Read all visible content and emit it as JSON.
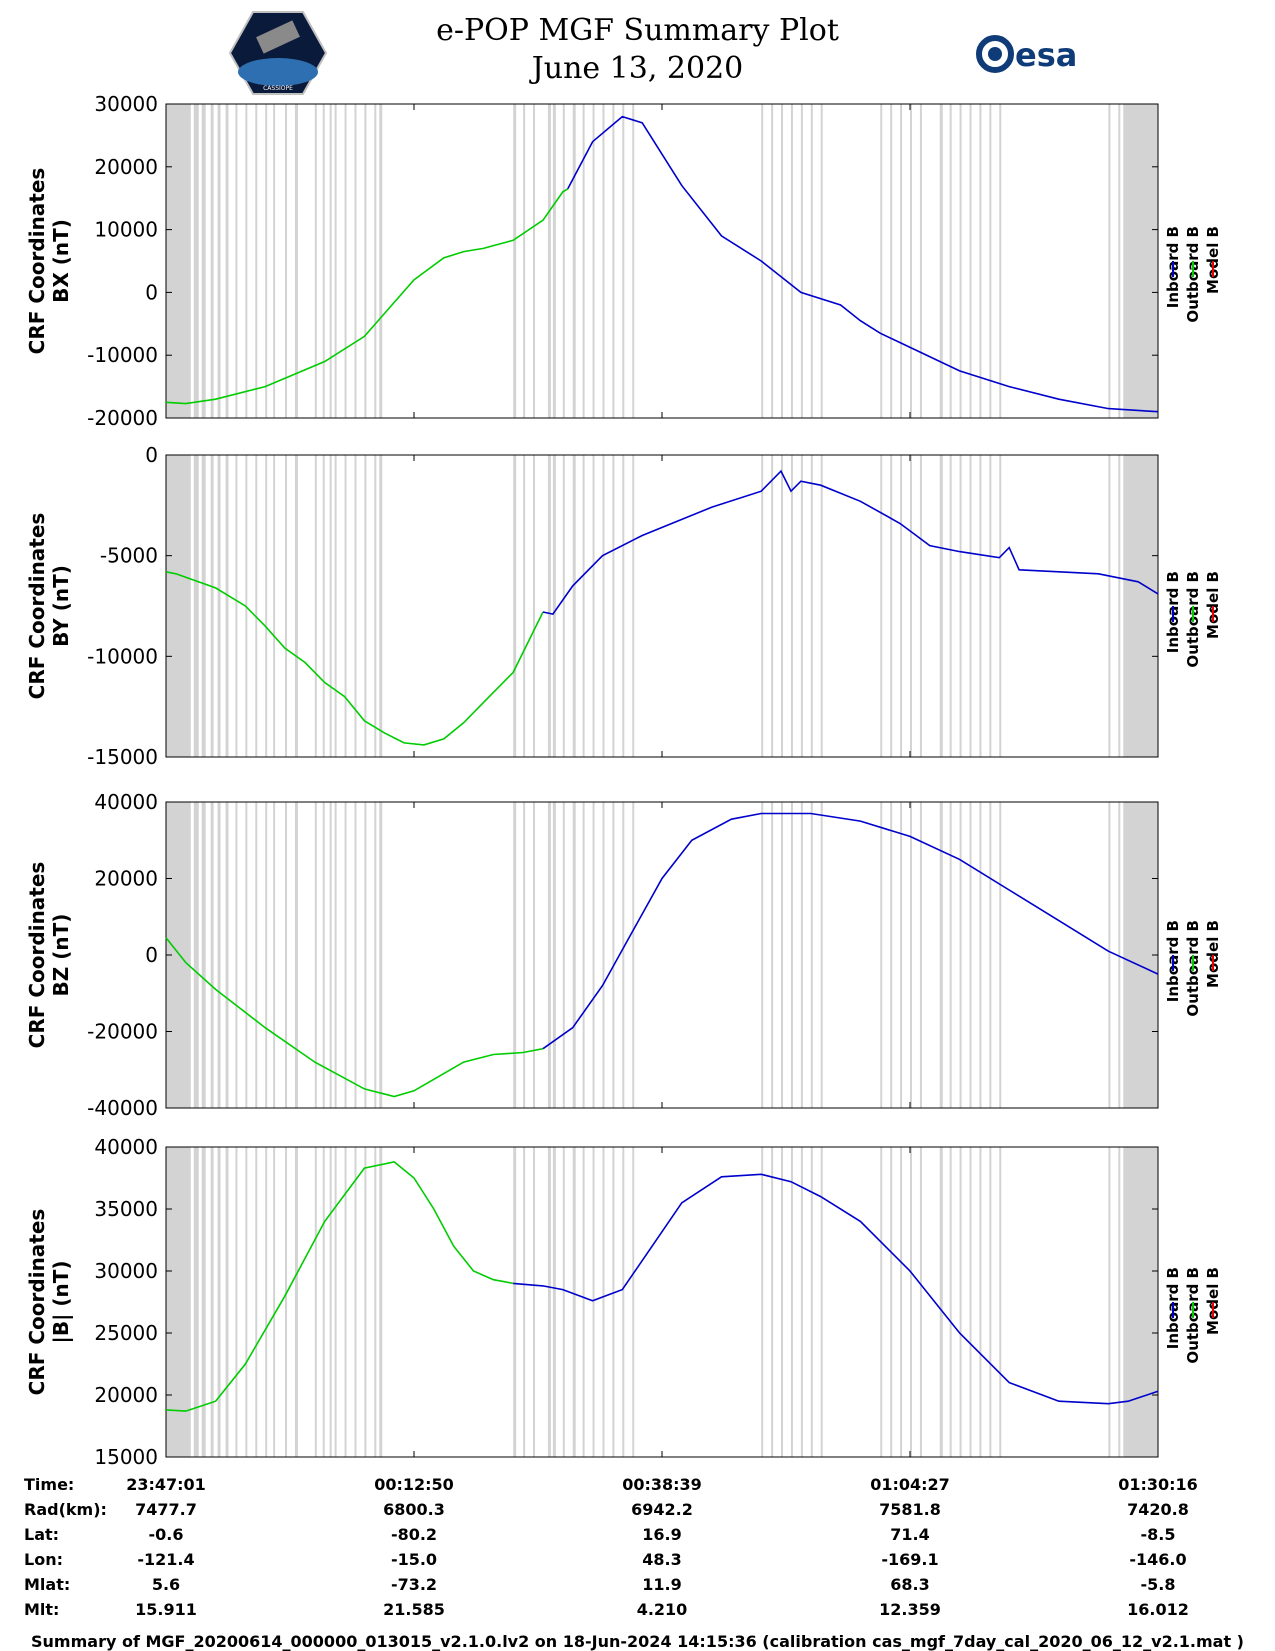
{
  "header": {
    "title_line1": "e-POP MGF Summary Plot",
    "title_line2": "June 13, 2020",
    "logo_left_text": "CASSIOPE",
    "logo_right_text": "esa"
  },
  "colors": {
    "inboard": "#0000cc",
    "outboard": "#00cc00",
    "model": "#ee0000",
    "gap": "#d3d3d3"
  },
  "footer": "Summary of MGF_20200614_000000_013015_v2.1.0.lv2 on 18-Jun-2024 14:15:36 (calibration cas_mgf_7day_cal_2020_06_12_v2.1.mat )",
  "chart_data": [
    {
      "type": "line",
      "id": "bx",
      "ylabel": [
        "CRF Coordinates",
        "BX (nT)"
      ],
      "ylim": [
        -20000,
        30000
      ],
      "yticks": [
        "30000",
        "20000",
        "10000",
        "0",
        "-10000",
        "-20000"
      ],
      "yticks_values": [
        30000,
        20000,
        10000,
        0,
        -10000,
        -20000
      ],
      "legend": [
        "Inboard B",
        "Outboard B",
        "Model B"
      ],
      "x": [
        0,
        0.01,
        0.05,
        0.1,
        0.16,
        0.2,
        0.25,
        0.29,
        0.33,
        0.36,
        0.38,
        0.4,
        0.41
      ],
      "series": [
        {
          "name": "Outboard B",
          "x": [
            0,
            0.02,
            0.05,
            0.1,
            0.16,
            0.2,
            0.25,
            0.28,
            0.3,
            0.32,
            0.35,
            0.38,
            0.4,
            0.405
          ],
          "values": [
            -17500,
            -17700,
            -17000,
            -15000,
            -11000,
            -7000,
            2000,
            5500,
            6500,
            7000,
            8300,
            11500,
            16000,
            16500
          ]
        },
        {
          "name": "Inboard B",
          "x": [
            0.405,
            0.43,
            0.46,
            0.48,
            0.5,
            0.52,
            0.56,
            0.6,
            0.64,
            0.68,
            0.7,
            0.72,
            0.74,
            0.8,
            0.85,
            0.9,
            0.95,
            1.0
          ],
          "values": [
            16500,
            24000,
            28000,
            27000,
            22000,
            17000,
            9000,
            5000,
            0,
            -2000,
            -4500,
            -6500,
            -8000,
            -12500,
            -15000,
            -17000,
            -18500,
            -19000
          ]
        }
      ]
    },
    {
      "type": "line",
      "id": "by",
      "ylabel": [
        "CRF Coordinates",
        "BY (nT)"
      ],
      "ylim": [
        -15000,
        0
      ],
      "yticks": [
        "0",
        "-5000",
        "-10000",
        "-15000"
      ],
      "yticks_values": [
        0,
        -5000,
        -10000,
        -15000
      ],
      "legend": [
        "Inboard B",
        "Outboard B",
        "Model B"
      ],
      "series": [
        {
          "name": "Outboard B",
          "x": [
            0,
            0.01,
            0.05,
            0.08,
            0.1,
            0.12,
            0.14,
            0.16,
            0.18,
            0.2,
            0.22,
            0.24,
            0.26,
            0.28,
            0.3,
            0.32,
            0.35,
            0.37,
            0.38
          ],
          "values": [
            -5800,
            -5900,
            -6600,
            -7500,
            -8500,
            -9600,
            -10300,
            -11300,
            -12000,
            -13200,
            -13800,
            -14300,
            -14400,
            -14100,
            -13300,
            -12300,
            -10800,
            -8800,
            -7800
          ]
        },
        {
          "name": "Inboard B",
          "x": [
            0.38,
            0.39,
            0.41,
            0.44,
            0.48,
            0.52,
            0.55,
            0.6,
            0.62,
            0.63,
            0.64,
            0.66,
            0.7,
            0.74,
            0.77,
            0.8,
            0.84,
            0.85,
            0.86,
            0.9,
            0.94,
            0.98,
            1.0
          ],
          "values": [
            -7800,
            -7900,
            -6500,
            -5000,
            -4000,
            -3200,
            -2600,
            -1800,
            -800,
            -1800,
            -1300,
            -1500,
            -2300,
            -3400,
            -4500,
            -4800,
            -5100,
            -4600,
            -5700,
            -5800,
            -5900,
            -6300,
            -6900
          ]
        }
      ]
    },
    {
      "type": "line",
      "id": "bz",
      "ylabel": [
        "CRF Coordinates",
        "BZ (nT)"
      ],
      "ylim": [
        -40000,
        40000
      ],
      "yticks": [
        "40000",
        "20000",
        "0",
        "-20000",
        "-40000"
      ],
      "yticks_values": [
        40000,
        20000,
        0,
        -20000,
        -40000
      ],
      "legend": [
        "Inboard B",
        "Outboard B",
        "Model B"
      ],
      "series": [
        {
          "name": "Outboard B",
          "x": [
            0,
            0.02,
            0.05,
            0.1,
            0.15,
            0.2,
            0.23,
            0.25,
            0.28,
            0.3,
            0.33,
            0.36,
            0.38
          ],
          "values": [
            4500,
            -2000,
            -9000,
            -19000,
            -28000,
            -35000,
            -37000,
            -35500,
            -31000,
            -28000,
            -26000,
            -25500,
            -24500
          ]
        },
        {
          "name": "Inboard B",
          "x": [
            0.38,
            0.41,
            0.44,
            0.47,
            0.5,
            0.53,
            0.57,
            0.6,
            0.65,
            0.7,
            0.75,
            0.8,
            0.85,
            0.9,
            0.95,
            1.0
          ],
          "values": [
            -24500,
            -19000,
            -8000,
            6000,
            20000,
            30000,
            35500,
            37000,
            37000,
            35000,
            31000,
            25000,
            17000,
            9000,
            1000,
            -5000
          ]
        }
      ]
    },
    {
      "type": "line",
      "id": "bmag",
      "ylabel": [
        "CRF Coordinates",
        "|B| (nT)"
      ],
      "ylim": [
        15000,
        40000
      ],
      "yticks": [
        "40000",
        "35000",
        "30000",
        "25000",
        "20000",
        "15000"
      ],
      "yticks_values": [
        40000,
        35000,
        30000,
        25000,
        20000,
        15000
      ],
      "legend": [
        "Inboard B",
        "Outboard B",
        "Model B"
      ],
      "series": [
        {
          "name": "Outboard B",
          "x": [
            0,
            0.02,
            0.05,
            0.08,
            0.12,
            0.16,
            0.2,
            0.23,
            0.25,
            0.27,
            0.29,
            0.31,
            0.33,
            0.35
          ],
          "values": [
            18800,
            18700,
            19500,
            22500,
            28000,
            34000,
            38300,
            38800,
            37500,
            35000,
            32000,
            30000,
            29300,
            29000
          ]
        },
        {
          "name": "Inboard B",
          "x": [
            0.35,
            0.38,
            0.4,
            0.43,
            0.46,
            0.49,
            0.52,
            0.56,
            0.6,
            0.63,
            0.66,
            0.7,
            0.75,
            0.8,
            0.85,
            0.9,
            0.95,
            0.97,
            1.0
          ],
          "values": [
            29000,
            28800,
            28500,
            27600,
            28500,
            32000,
            35500,
            37600,
            37800,
            37200,
            36000,
            34000,
            30000,
            25000,
            21000,
            19500,
            19300,
            19500,
            20300
          ]
        }
      ]
    }
  ],
  "table": {
    "rows": [
      {
        "label": "Time:",
        "values": [
          "23:47:01",
          "00:12:50",
          "00:38:39",
          "01:04:27",
          "01:30:16"
        ]
      },
      {
        "label": "Rad(km):",
        "values": [
          "7477.7",
          "6800.3",
          "6942.2",
          "7581.8",
          "7420.8"
        ]
      },
      {
        "label": "Lat:",
        "values": [
          "-0.6",
          "-80.2",
          "16.9",
          "71.4",
          "-8.5"
        ]
      },
      {
        "label": "Lon:",
        "values": [
          "-121.4",
          "-15.0",
          "48.3",
          "-169.1",
          "-146.0"
        ]
      },
      {
        "label": "Mlat:",
        "values": [
          "5.6",
          "-73.2",
          "11.9",
          "68.3",
          "-5.8"
        ]
      },
      {
        "label": "Mlt:",
        "values": [
          "15.911",
          "21.585",
          "4.210",
          "12.359",
          "16.012"
        ]
      }
    ]
  },
  "gaps": [
    [
      0,
      0.025
    ],
    [
      0.028,
      0.033
    ],
    [
      0.036,
      0.04
    ],
    [
      0.045,
      0.048
    ],
    [
      0.052,
      0.055
    ],
    [
      0.06,
      0.063
    ],
    [
      0.07,
      0.072
    ],
    [
      0.08,
      0.082
    ],
    [
      0.09,
      0.092
    ],
    [
      0.1,
      0.102
    ],
    [
      0.108,
      0.11
    ],
    [
      0.12,
      0.122
    ],
    [
      0.13,
      0.133
    ],
    [
      0.15,
      0.152
    ],
    [
      0.158,
      0.16
    ],
    [
      0.165,
      0.167
    ],
    [
      0.17,
      0.172
    ],
    [
      0.18,
      0.182
    ],
    [
      0.19,
      0.192
    ],
    [
      0.2,
      0.202
    ],
    [
      0.21,
      0.212
    ],
    [
      0.215,
      0.218
    ],
    [
      0.35,
      0.353
    ],
    [
      0.36,
      0.362
    ],
    [
      0.37,
      0.372
    ],
    [
      0.385,
      0.388
    ],
    [
      0.39,
      0.393
    ],
    [
      0.4,
      0.402
    ],
    [
      0.41,
      0.413
    ],
    [
      0.42,
      0.422
    ],
    [
      0.43,
      0.432
    ],
    [
      0.44,
      0.442
    ],
    [
      0.45,
      0.452
    ],
    [
      0.46,
      0.462
    ],
    [
      0.47,
      0.472
    ],
    [
      0.6,
      0.602
    ],
    [
      0.61,
      0.612
    ],
    [
      0.62,
      0.622
    ],
    [
      0.63,
      0.632
    ],
    [
      0.64,
      0.642
    ],
    [
      0.65,
      0.652
    ],
    [
      0.66,
      0.662
    ],
    [
      0.72,
      0.722
    ],
    [
      0.73,
      0.732
    ],
    [
      0.74,
      0.742
    ],
    [
      0.75,
      0.752
    ],
    [
      0.76,
      0.762
    ],
    [
      0.78,
      0.783
    ],
    [
      0.79,
      0.792
    ],
    [
      0.8,
      0.802
    ],
    [
      0.81,
      0.812
    ],
    [
      0.82,
      0.822
    ],
    [
      0.83,
      0.832
    ],
    [
      0.84,
      0.842
    ],
    [
      0.95,
      0.952
    ],
    [
      0.96,
      0.962
    ],
    [
      0.965,
      1.0
    ]
  ],
  "xticks_values": [
    0,
    0.25,
    0.5,
    0.75,
    1.0
  ]
}
